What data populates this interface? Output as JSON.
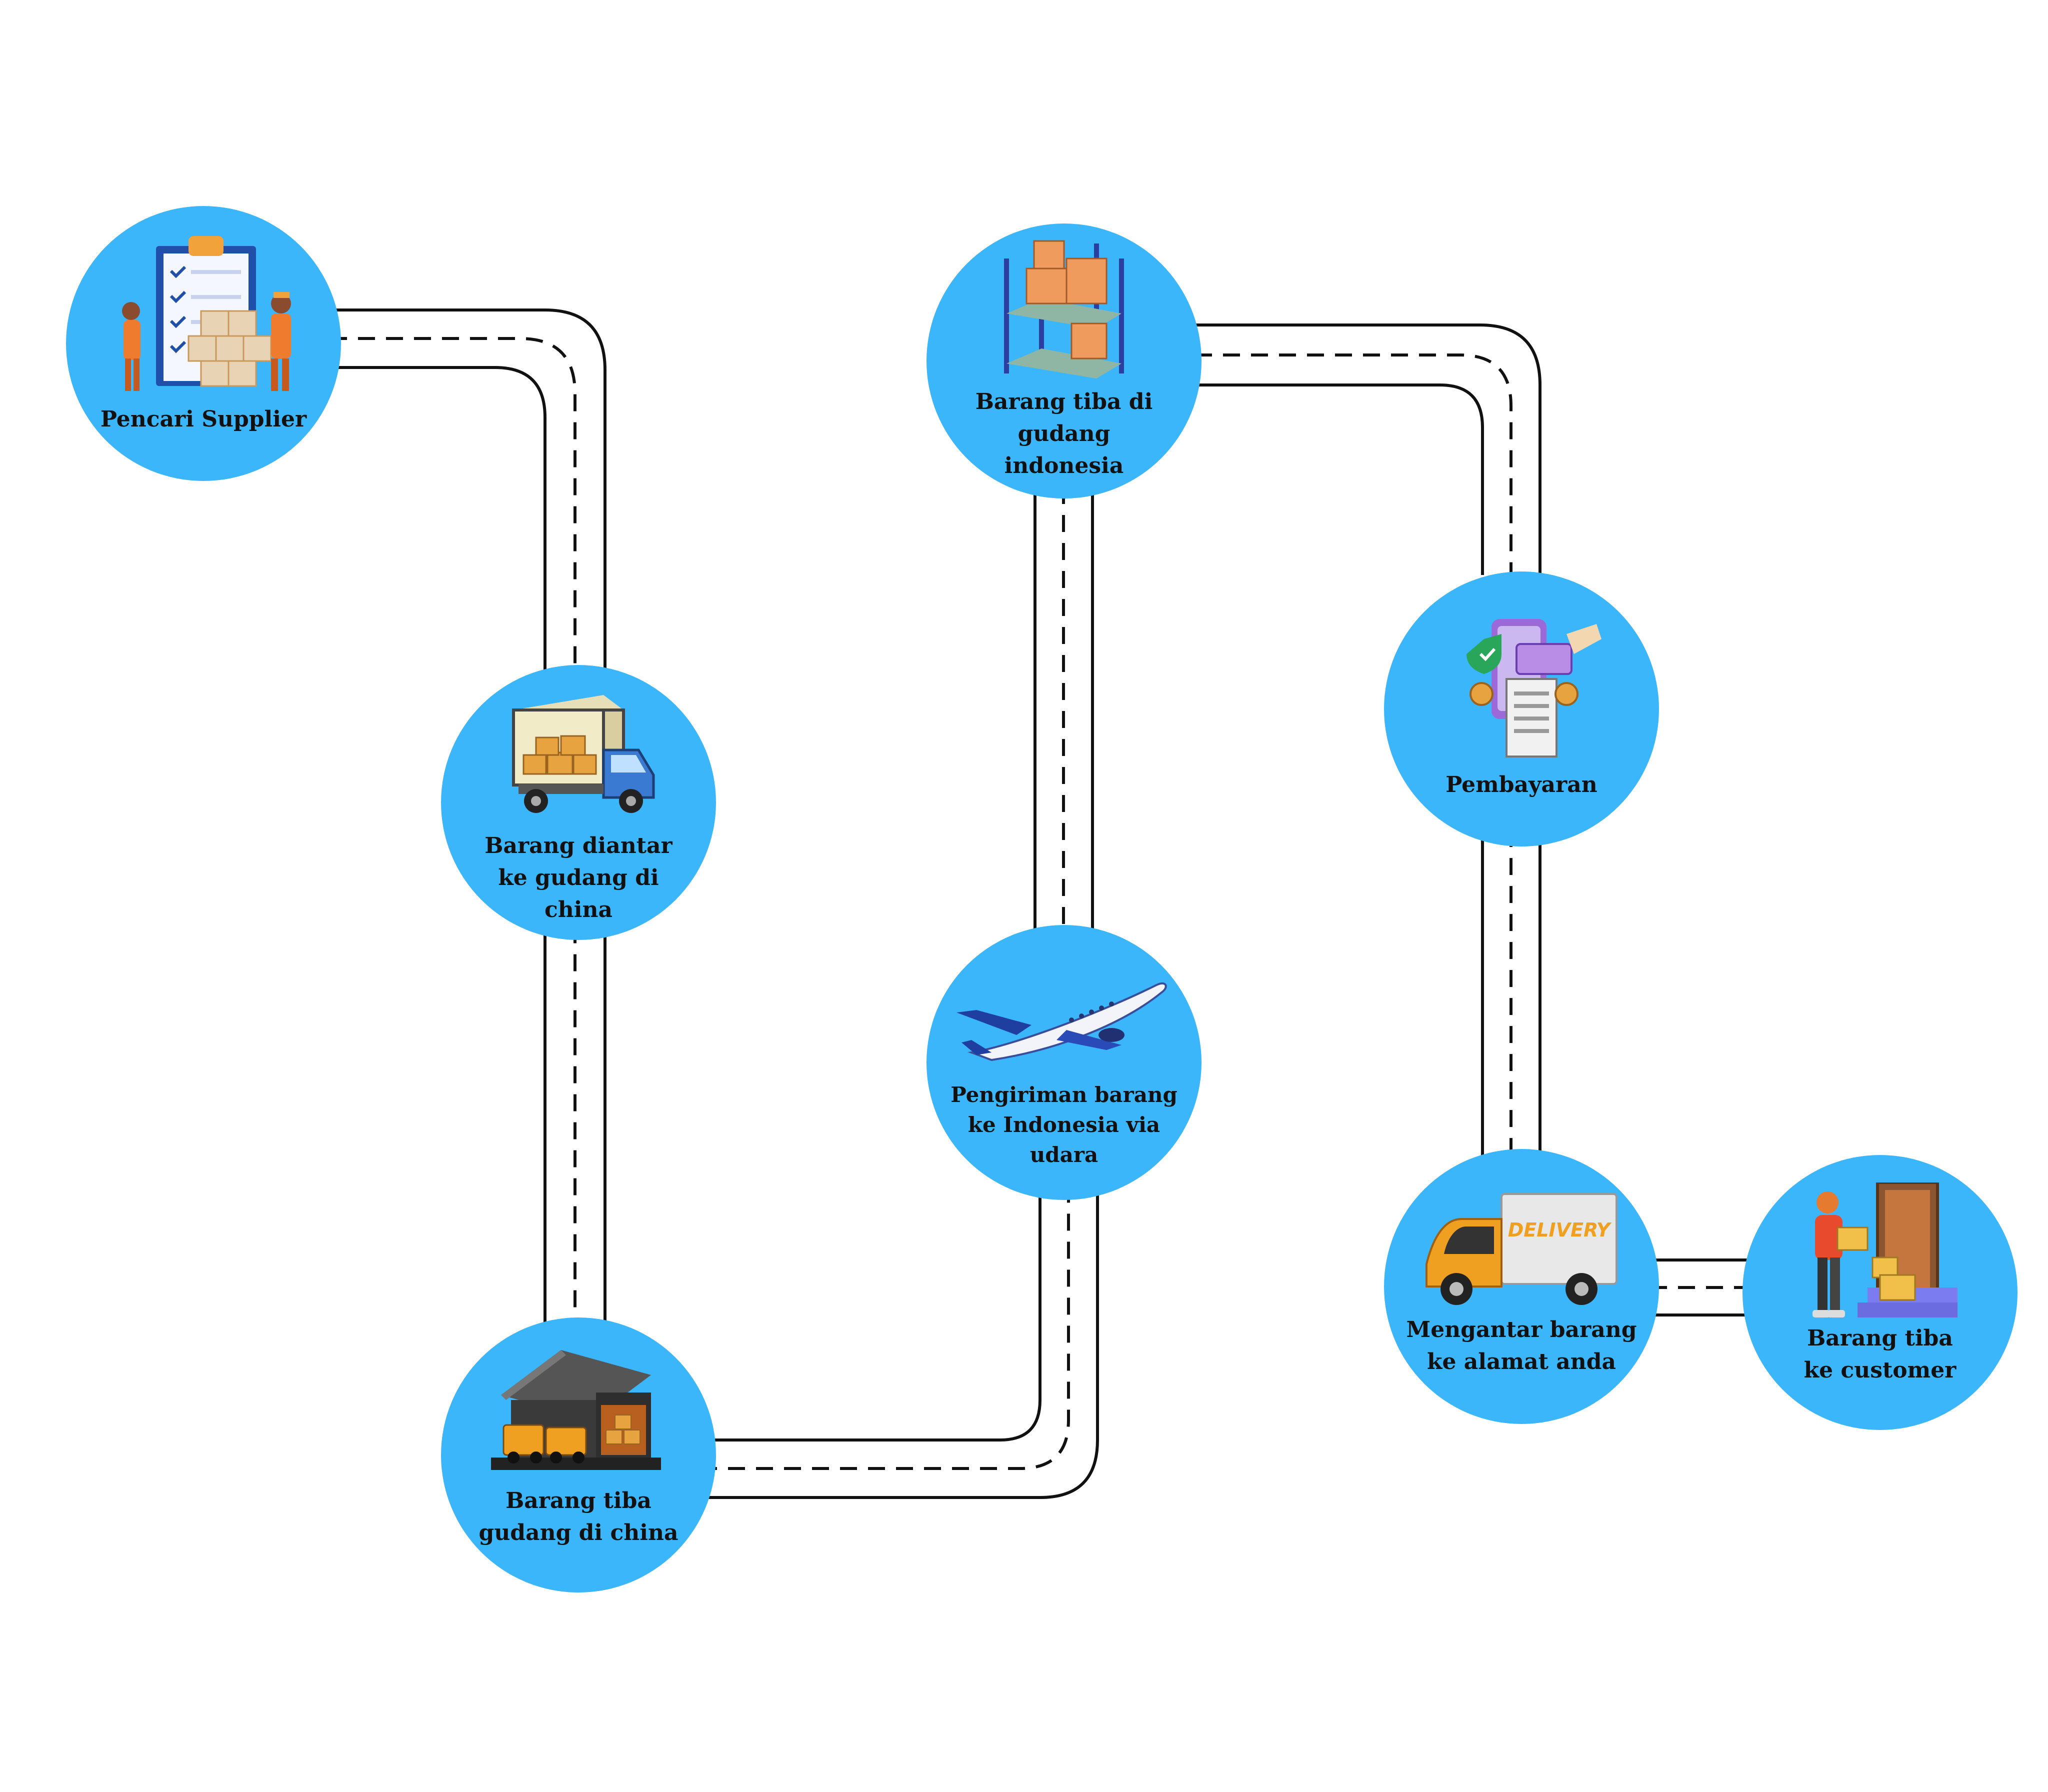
{
  "steps": [
    {
      "id": "pencari-supplier",
      "icon": "clipboard-workers-icon",
      "lines": [
        "Pencari Supplier"
      ]
    },
    {
      "id": "diantar-gudang-china",
      "icon": "truck-boxes-icon",
      "lines": [
        "Barang diantar",
        "ke gudang di china"
      ]
    },
    {
      "id": "tiba-gudang-china",
      "icon": "warehouse-trucks-icon",
      "lines": [
        "Barang tiba",
        "gudang di china"
      ]
    },
    {
      "id": "pengiriman-udara",
      "icon": "airplane-icon",
      "lines": [
        "Pengiriman barang",
        "ke Indonesia via",
        "udara"
      ]
    },
    {
      "id": "tiba-gudang-indonesia",
      "icon": "shelf-boxes-icon",
      "lines": [
        "Barang tiba di gudang",
        "indonesia"
      ]
    },
    {
      "id": "pembayaran",
      "icon": "payment-icon",
      "lines": [
        "Pembayaran"
      ]
    },
    {
      "id": "mengantar-alamat",
      "icon": "delivery-van-icon",
      "lines": [
        "Mengantar barang",
        "ke alamat anda"
      ]
    },
    {
      "id": "tiba-customer",
      "icon": "courier-door-icon",
      "lines": [
        "Barang tiba",
        "ke customer"
      ]
    }
  ],
  "van_text": "DELIVERY",
  "colors": {
    "circle": "#3bb6fb",
    "road_line": "#111111",
    "road_fill": "#ffffff"
  }
}
